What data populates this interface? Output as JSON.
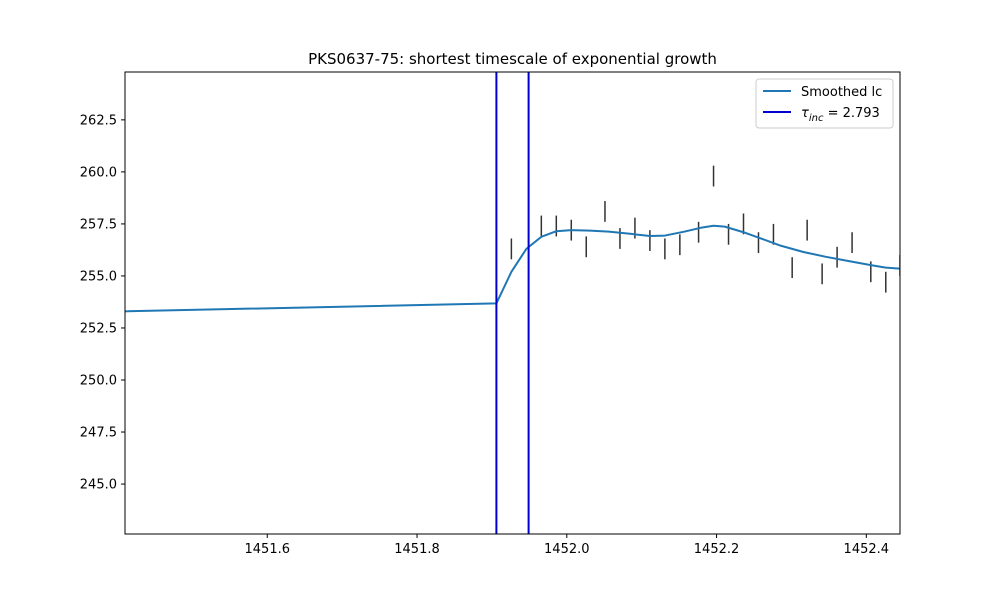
{
  "chart_data": {
    "type": "line",
    "title": "PKS0637-75: shortest timescale of exponential growth",
    "xlabel": "",
    "ylabel": "",
    "xlim": [
      1451.41,
      1452.445
    ],
    "ylim": [
      242.6,
      264.8
    ],
    "x_ticks": [
      1451.6,
      1451.8,
      1452.0,
      1452.2,
      1452.4
    ],
    "x_tick_labels": [
      "1451.6",
      "1451.8",
      "1452.0",
      "1452.2",
      "1452.4"
    ],
    "y_ticks": [
      245.0,
      247.5,
      250.0,
      252.5,
      255.0,
      257.5,
      260.0,
      262.5
    ],
    "y_tick_labels": [
      "245.0",
      "247.5",
      "250.0",
      "252.5",
      "255.0",
      "257.5",
      "260.0",
      "262.5"
    ],
    "grid": false,
    "legend_position": "top-right",
    "series": [
      {
        "name": "Smoothed lc",
        "color": "#1f77b4",
        "x": [
          1451.41,
          1451.906,
          1451.926,
          1451.946,
          1451.966,
          1451.986,
          1452.006,
          1452.031,
          1452.056,
          1452.086,
          1452.111,
          1452.131,
          1452.156,
          1452.181,
          1452.196,
          1452.211,
          1452.236,
          1452.261,
          1452.286,
          1452.316,
          1452.346,
          1452.376,
          1452.406,
          1452.426,
          1452.445
        ],
        "y": [
          253.3,
          253.68,
          255.2,
          256.3,
          256.88,
          257.15,
          257.2,
          257.18,
          257.13,
          257.02,
          256.92,
          256.94,
          257.12,
          257.33,
          257.41,
          257.37,
          257.1,
          256.78,
          256.45,
          256.15,
          255.92,
          255.72,
          255.52,
          255.4,
          255.35
        ]
      }
    ],
    "error_bars": {
      "color": "#333333",
      "x": [
        1451.926,
        1451.966,
        1451.986,
        1452.006,
        1452.026,
        1452.051,
        1452.071,
        1452.091,
        1452.111,
        1452.131,
        1452.151,
        1452.176,
        1452.196,
        1452.216,
        1452.236,
        1452.256,
        1452.276,
        1452.301,
        1452.321,
        1452.341,
        1452.361,
        1452.381,
        1452.406,
        1452.426,
        1452.445
      ],
      "low": [
        255.8,
        256.9,
        256.9,
        256.7,
        255.9,
        257.6,
        256.3,
        256.8,
        256.2,
        255.8,
        256.0,
        256.6,
        259.3,
        256.5,
        257.0,
        256.1,
        256.5,
        254.9,
        256.7,
        254.6,
        255.4,
        256.1,
        254.7,
        254.2,
        255.0
      ],
      "high": [
        256.8,
        257.9,
        257.9,
        257.7,
        256.9,
        258.6,
        257.3,
        257.8,
        257.2,
        256.8,
        257.0,
        257.6,
        260.3,
        257.5,
        258.0,
        257.1,
        257.5,
        255.9,
        257.7,
        255.6,
        256.4,
        257.1,
        255.7,
        255.2,
        256.0
      ]
    },
    "vertical_lines": {
      "name": "τinc = 2.793",
      "legend_symbol": "τ",
      "legend_subscript": "inc",
      "legend_value_text": " = 2.793",
      "color": "#0000cc",
      "x": [
        1451.906,
        1451.949
      ]
    }
  }
}
